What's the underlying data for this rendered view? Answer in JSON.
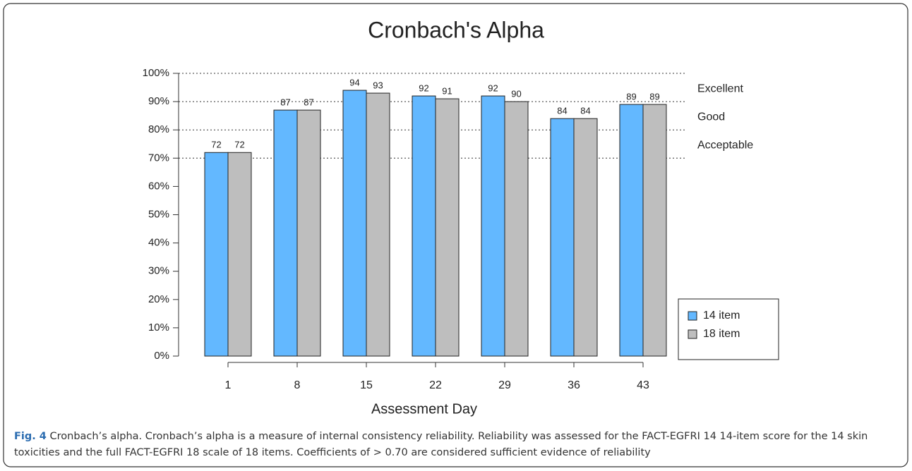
{
  "chart_data": {
    "type": "bar",
    "title": "Cronbach's Alpha",
    "x_label": "Assessment Day",
    "categories": [
      "1",
      "8",
      "15",
      "22",
      "29",
      "36",
      "43"
    ],
    "series": [
      {
        "name": "14 item",
        "color": "#63b8ff",
        "values": [
          72,
          87,
          94,
          92,
          92,
          84,
          89
        ]
      },
      {
        "name": "18 item",
        "color": "#bebebe",
        "values": [
          72,
          87,
          93,
          91,
          90,
          84,
          89
        ]
      }
    ],
    "ylim": [
      0,
      100
    ],
    "yticks": [
      {
        "value": 0,
        "label": "0%"
      },
      {
        "value": 10,
        "label": "10%"
      },
      {
        "value": 20,
        "label": "20%"
      },
      {
        "value": 30,
        "label": "30%"
      },
      {
        "value": 40,
        "label": "40%"
      },
      {
        "value": 50,
        "label": "50%"
      },
      {
        "value": 60,
        "label": "60%"
      },
      {
        "value": 70,
        "label": "70%"
      },
      {
        "value": 80,
        "label": "80%"
      },
      {
        "value": 90,
        "label": "90%"
      },
      {
        "value": 100,
        "label": "100%"
      }
    ],
    "reference_lines": [
      70,
      80,
      90,
      100
    ],
    "zones": [
      {
        "label": "Excellent",
        "from": 90,
        "to": 100
      },
      {
        "label": "Good",
        "from": 80,
        "to": 90
      },
      {
        "label": "Acceptable",
        "from": 70,
        "to": 80
      }
    ],
    "legend": "bottom-right"
  },
  "caption": {
    "label": "Fig. 4",
    "text": "Cronbach’s alpha. Cronbach’s alpha is a measure of internal consistency reliability. Reliability was assessed for the FACT-EGFRI 14 14-item score for the 14 skin toxicities and the full FACT-EGFRI 18 scale of 18 items. Coefficients of > 0.70 are considered sufficient evidence of reliability"
  }
}
